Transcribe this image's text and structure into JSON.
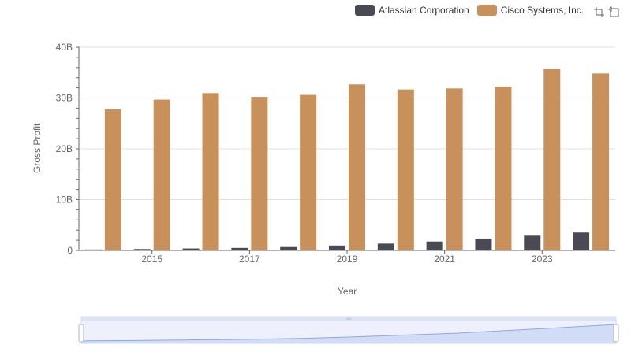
{
  "chart_data": {
    "type": "bar",
    "title": "",
    "xlabel": "Year",
    "ylabel": "Gross Profit",
    "ylim": [
      0,
      40000000000
    ],
    "y_ticks": [
      "0",
      "10B",
      "20B",
      "30B",
      "40B"
    ],
    "x_tick_labels": [
      "2015",
      "2017",
      "2019",
      "2021",
      "2023"
    ],
    "categories": [
      "2014",
      "2015",
      "2016",
      "2017",
      "2018",
      "2019",
      "2020",
      "2021",
      "2022",
      "2023",
      "2024"
    ],
    "series": [
      {
        "name": "Atlassian Corporation",
        "color": "#4a4a55",
        "values": [
          180000000,
          270000000,
          380000000,
          490000000,
          660000000,
          960000000,
          1340000000,
          1750000000,
          2330000000,
          2900000000,
          3530000000
        ]
      },
      {
        "name": "Cisco Systems, Inc.",
        "color": "#c8915b",
        "values": [
          27770000000,
          29680000000,
          30960000000,
          30220000000,
          30610000000,
          32670000000,
          31680000000,
          31890000000,
          32250000000,
          35750000000,
          34830000000
        ]
      }
    ],
    "grid": true,
    "legend_position": "top-right"
  }
}
